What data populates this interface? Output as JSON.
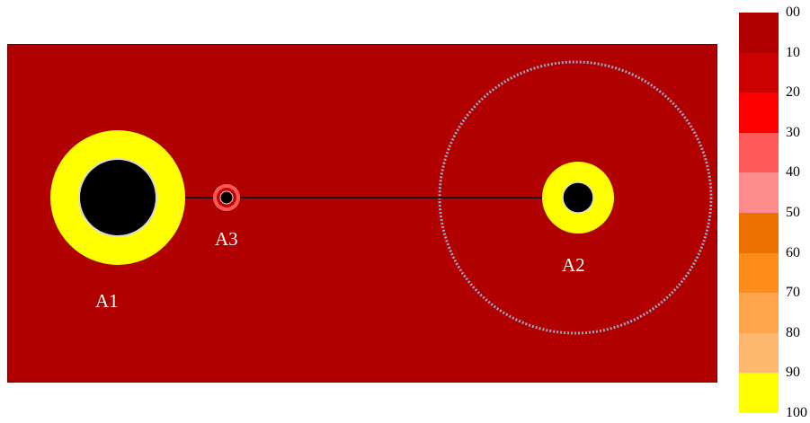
{
  "regions": [
    {
      "id": "A1",
      "label": "A1"
    },
    {
      "id": "A2",
      "label": "A2"
    },
    {
      "id": "A3",
      "label": "A3"
    }
  ],
  "legend": {
    "ticks": [
      "00",
      "10",
      "20",
      "30",
      "40",
      "50",
      "60",
      "70",
      "80",
      "90",
      "100"
    ],
    "colors": [
      "#b00000",
      "#cc0000",
      "#ff0000",
      "#ff5a5a",
      "#ff8c8c",
      "#ee7000",
      "#ff8c1a",
      "#ffa64d",
      "#ffb870",
      "#ffff00"
    ]
  },
  "colors": {
    "background_field": "#b00000",
    "hot_ring": "#ffff00",
    "core": "#000000",
    "core_rim": "#d9d9d9",
    "influence_circle": "#9aa6c4",
    "small_ring": "#ff5a5a",
    "connector": "#1a0000"
  }
}
